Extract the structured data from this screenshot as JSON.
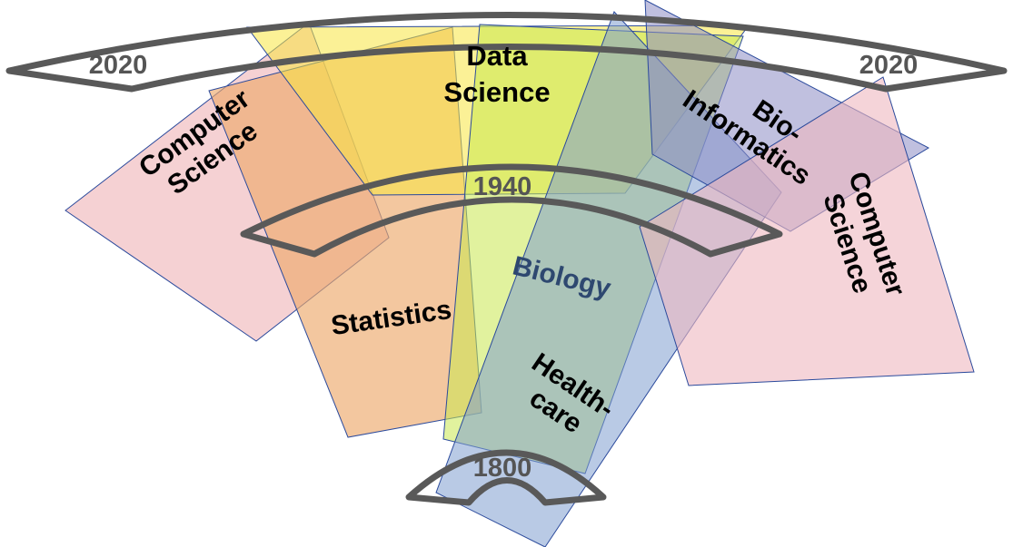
{
  "regions": {
    "computer_science_left": {
      "line1": "Computer",
      "line2": "Science",
      "color": "#f0b8bc"
    },
    "statistics": {
      "label": "Statistics",
      "color": "#eca96b"
    },
    "data_science": {
      "line1": "Data",
      "line2": "Science",
      "color": "#f7e640"
    },
    "biology": {
      "label": "Biology",
      "color": "#c9e84f"
    },
    "healthcare": {
      "line1": "Health-",
      "line2": "care",
      "color": "#7f9fcf"
    },
    "bioinformatics": {
      "line1": "Bio-",
      "line2": "Informatics",
      "color": "#8c8cc4"
    },
    "computer_science_right": {
      "line1": "Computer",
      "line2": "Science",
      "color": "#efb8c0"
    }
  },
  "years": {
    "outer_left": "2020",
    "outer_right": "2020",
    "middle": "1940",
    "inner": "1800"
  },
  "arc_color": "#595959"
}
